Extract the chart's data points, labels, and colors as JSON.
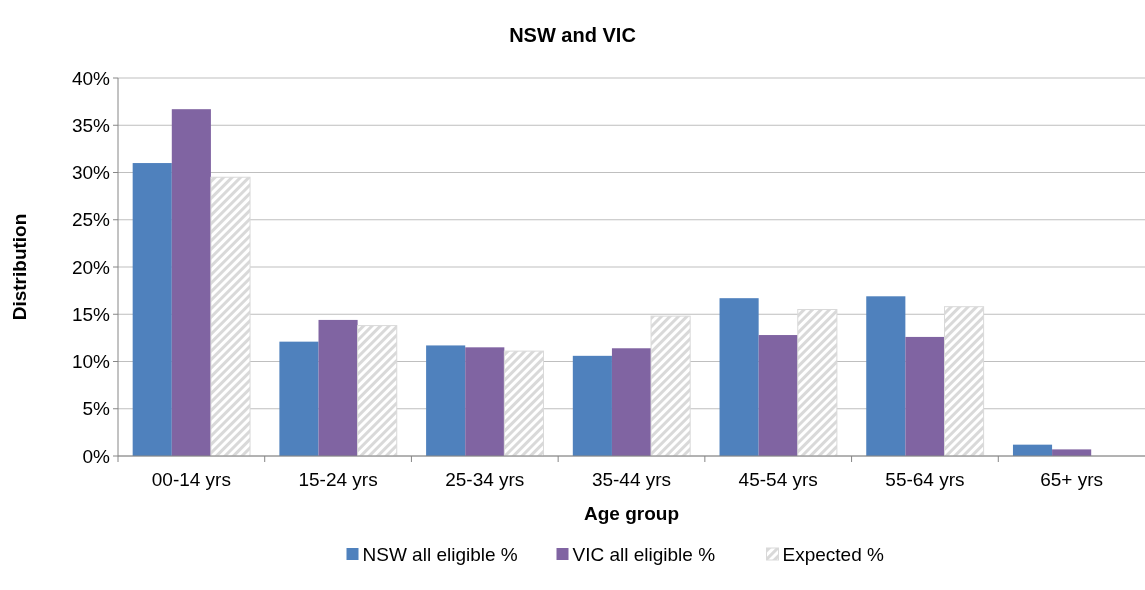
{
  "chart_data": {
    "type": "bar",
    "title": "NSW and VIC",
    "xlabel": "Age group",
    "ylabel": "Distribution",
    "categories": [
      "00-14 yrs",
      "15-24 yrs",
      "25-34 yrs",
      "35-44 yrs",
      "45-54 yrs",
      "55-64 yrs",
      "65+ yrs"
    ],
    "series": [
      {
        "name": "NSW all eligible %",
        "color": "#4f81bd",
        "values": [
          31.0,
          12.1,
          11.7,
          10.6,
          16.7,
          16.9,
          1.2
        ]
      },
      {
        "name": "VIC all eligible %",
        "color": "#8064a2",
        "values": [
          36.7,
          14.4,
          11.5,
          11.4,
          12.8,
          12.6,
          0.7
        ]
      },
      {
        "name": "Expected %",
        "color": "#d9d9d9",
        "values": [
          29.5,
          13.8,
          11.1,
          14.8,
          15.5,
          15.8,
          0
        ]
      }
    ],
    "ylim": [
      0,
      40
    ],
    "yticks": [
      {
        "value": 0,
        "label": "0%"
      },
      {
        "value": 5,
        "label": "5%"
      },
      {
        "value": 10,
        "label": "10%"
      },
      {
        "value": 15,
        "label": "15%"
      },
      {
        "value": 20,
        "label": "20%"
      },
      {
        "value": 25,
        "label": "25%"
      },
      {
        "value": 30,
        "label": "30%"
      },
      {
        "value": 35,
        "label": "35%"
      },
      {
        "value": 40,
        "label": "40%"
      }
    ],
    "grid": "y",
    "legend": "bottom"
  }
}
